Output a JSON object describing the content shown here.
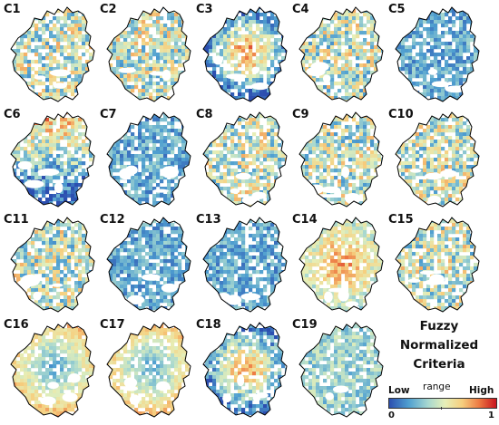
{
  "panels": [
    {
      "label": "C1",
      "pattern": "mixed"
    },
    {
      "label": "C2",
      "pattern": "mixed"
    },
    {
      "label": "C3",
      "pattern": "center-high"
    },
    {
      "label": "C4",
      "pattern": "mixed"
    },
    {
      "label": "C5",
      "pattern": "low"
    },
    {
      "label": "C6",
      "pattern": "north-high"
    },
    {
      "label": "C7",
      "pattern": "low"
    },
    {
      "label": "C8",
      "pattern": "mixed"
    },
    {
      "label": "C9",
      "pattern": "mixed"
    },
    {
      "label": "C10",
      "pattern": "mixed"
    },
    {
      "label": "C11",
      "pattern": "mixed"
    },
    {
      "label": "C12",
      "pattern": "low"
    },
    {
      "label": "C13",
      "pattern": "low"
    },
    {
      "label": "C14",
      "pattern": "high"
    },
    {
      "label": "C15",
      "pattern": "mixed"
    },
    {
      "label": "C16",
      "pattern": "edge-high"
    },
    {
      "label": "C17",
      "pattern": "edge-high"
    },
    {
      "label": "C18",
      "pattern": "center-high"
    },
    {
      "label": "C19",
      "pattern": "sparse"
    }
  ],
  "legend": {
    "title_line1": "Fuzzy Normalized",
    "title_line2": "Criteria",
    "range_label": "range",
    "low_label": "Low",
    "high_label": "High",
    "min_value": "0",
    "max_value": "1"
  },
  "colors": {
    "low": "#2c4fb0",
    "mid": "#e6efb8",
    "high": "#c8141e",
    "outline": "#000000"
  }
}
